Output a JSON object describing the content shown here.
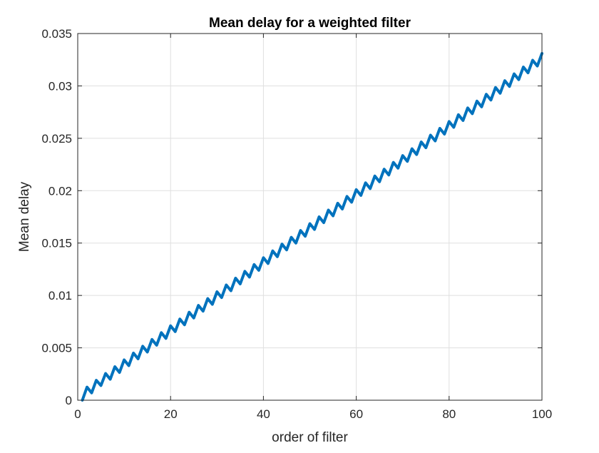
{
  "chart_data": {
    "type": "line",
    "title": "Mean delay for a weighted filter",
    "xlabel": "order of filter",
    "ylabel": "Mean delay",
    "xlim": [
      0,
      100
    ],
    "ylim": [
      0,
      0.035
    ],
    "x_ticks": [
      0,
      20,
      40,
      60,
      80,
      100
    ],
    "x_tick_labels": [
      "0",
      "20",
      "40",
      "60",
      "80",
      "100"
    ],
    "y_ticks": [
      0,
      0.005,
      0.01,
      0.015,
      0.02,
      0.025,
      0.03,
      0.035
    ],
    "y_tick_labels": [
      "0",
      "0.005",
      "0.01",
      "0.015",
      "0.02",
      "0.025",
      "0.03",
      "0.035"
    ],
    "grid": true,
    "line_color": "#0072BD",
    "series": [
      {
        "x": [
          1,
          2,
          3,
          4,
          5,
          6,
          7,
          8,
          9,
          10,
          11,
          12,
          13,
          14,
          15,
          16,
          17,
          18,
          19,
          20,
          21,
          22,
          23,
          24,
          25,
          26,
          27,
          28,
          29,
          30,
          31,
          32,
          33,
          34,
          35,
          36,
          37,
          38,
          39,
          40,
          41,
          42,
          43,
          44,
          45,
          46,
          47,
          48,
          49,
          50,
          51,
          52,
          53,
          54,
          55,
          56,
          57,
          58,
          59,
          60,
          61,
          62,
          63,
          64,
          65,
          66,
          67,
          68,
          69,
          70,
          71,
          72,
          73,
          74,
          75,
          76,
          77,
          78,
          79,
          80,
          81,
          82,
          83,
          84,
          85,
          86,
          87,
          88,
          89,
          90,
          91,
          92,
          93,
          94,
          95,
          96,
          97,
          98,
          99,
          100
        ],
        "values": [
          0,
          0.00125,
          0.0007,
          0.0019,
          0.0014,
          0.00255,
          0.002,
          0.0032,
          0.00265,
          0.00385,
          0.0033,
          0.0045,
          0.00395,
          0.00515,
          0.0046,
          0.0058,
          0.00525,
          0.00645,
          0.0059,
          0.0071,
          0.00655,
          0.00775,
          0.0072,
          0.0084,
          0.00785,
          0.00905,
          0.0085,
          0.0097,
          0.00915,
          0.01035,
          0.0098,
          0.011,
          0.01045,
          0.01165,
          0.0111,
          0.0123,
          0.01175,
          0.01295,
          0.0124,
          0.0136,
          0.01305,
          0.01425,
          0.0137,
          0.0149,
          0.01435,
          0.01555,
          0.015,
          0.0162,
          0.01565,
          0.01685,
          0.0163,
          0.0175,
          0.01695,
          0.01815,
          0.0176,
          0.0188,
          0.01825,
          0.01945,
          0.0189,
          0.0201,
          0.01955,
          0.02075,
          0.0202,
          0.0214,
          0.02085,
          0.02205,
          0.0215,
          0.0227,
          0.02215,
          0.02335,
          0.0228,
          0.024,
          0.02345,
          0.02465,
          0.0241,
          0.0253,
          0.02475,
          0.02595,
          0.0254,
          0.0266,
          0.02605,
          0.02725,
          0.0267,
          0.0279,
          0.02735,
          0.02855,
          0.028,
          0.0292,
          0.02865,
          0.02985,
          0.0293,
          0.0305,
          0.02995,
          0.03115,
          0.0306,
          0.0318,
          0.03125,
          0.03245,
          0.0319,
          0.0331
        ]
      }
    ]
  }
}
